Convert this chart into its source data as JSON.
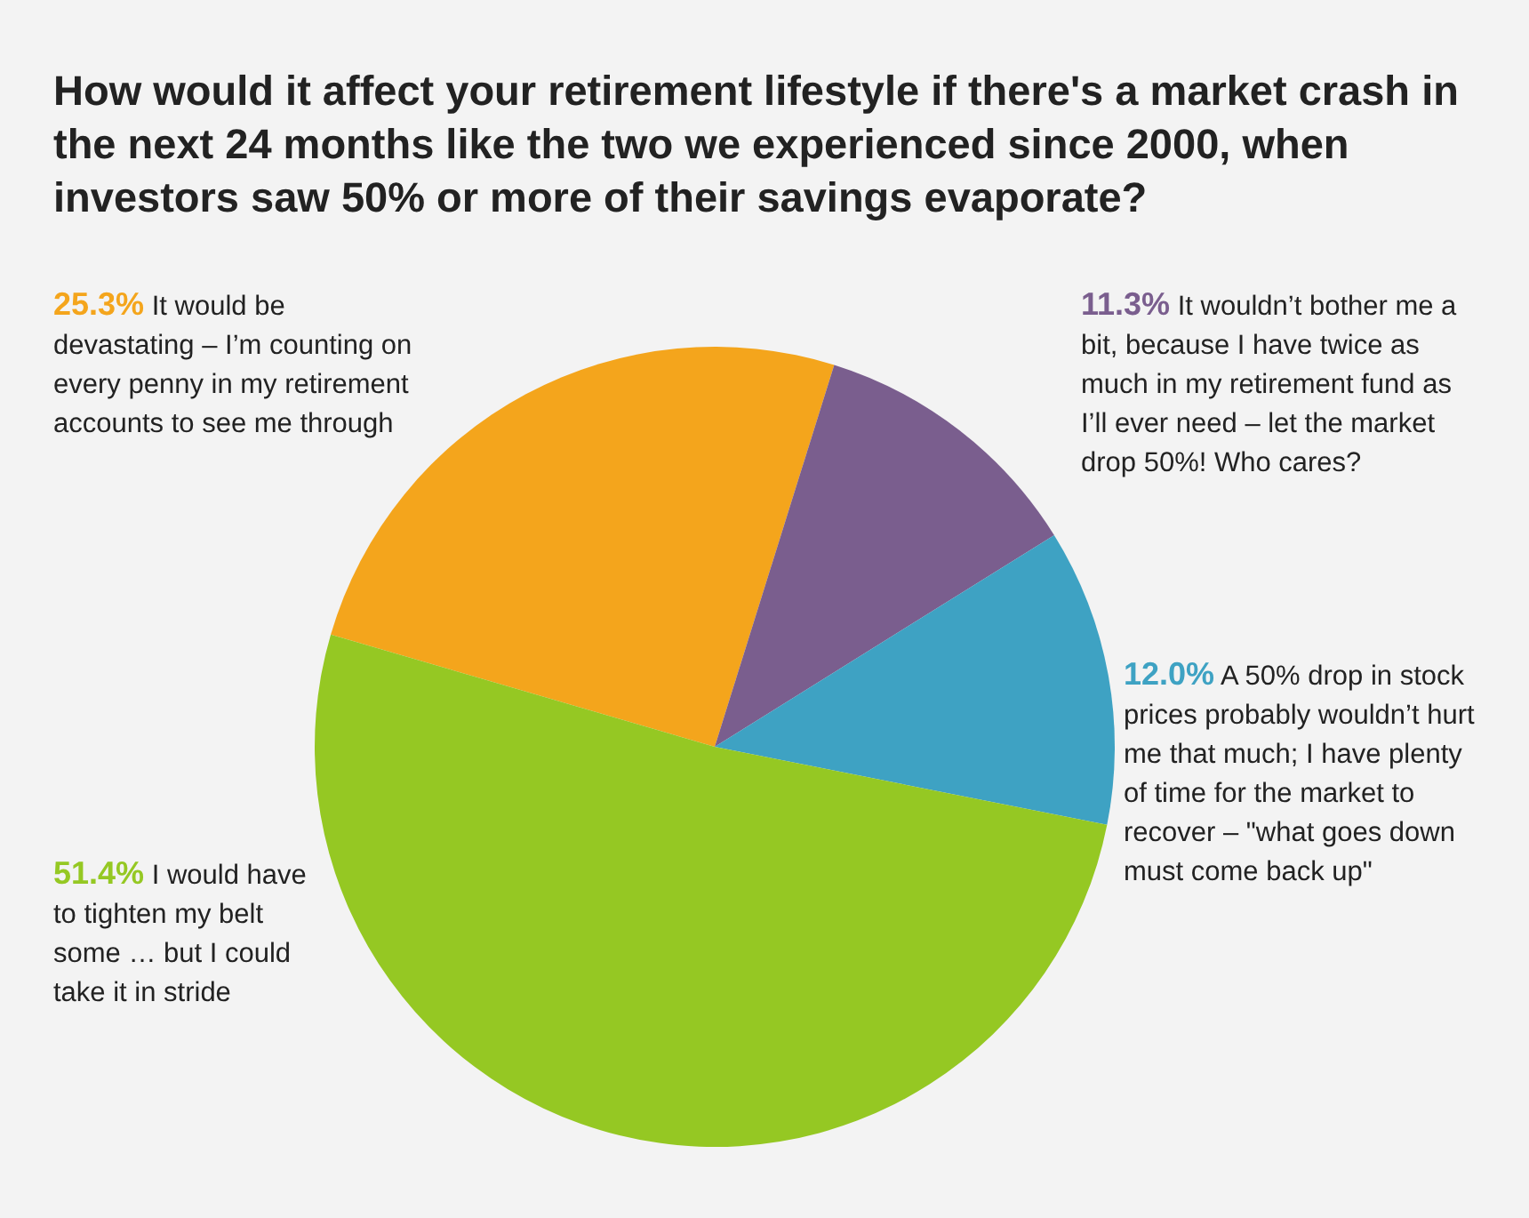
{
  "chart_data": {
    "type": "pie",
    "title": "How would it affect your retirement lifestyle if there's a market crash in the next 24 months like the two we experienced since 2000, when investors saw 50% or more of their savings evaporate?",
    "categories": [
      "It would be devastating – I’m counting on every penny in my retirement accounts to see me through",
      "It wouldn’t bother me a bit, because I have twice as much in my retirement fund as I’ll ever need – let the market drop 50%! Who cares?",
      "A 50% drop in stock prices probably wouldn’t hurt me that much; I have plenty of time for the market to recover – \"what goes down must come back up\"",
      "I would have to tighten my belt some … but I could take it in stride"
    ],
    "values": [
      25.3,
      11.3,
      12.0,
      51.4
    ],
    "colors": [
      "#f4a51c",
      "#7a5e8e",
      "#3ea2c3",
      "#95c823"
    ],
    "value_labels": [
      "25.3%",
      "11.3%",
      "12.0%",
      "51.4%"
    ]
  }
}
